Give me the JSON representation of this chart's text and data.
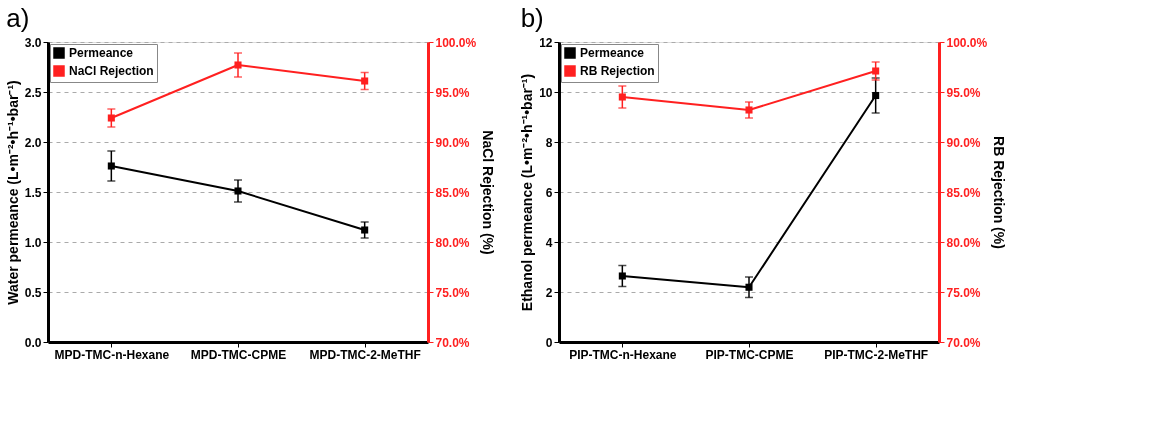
{
  "chart_data": [
    {
      "type": "line",
      "title": "a)",
      "categories": [
        "MPD-TMC-n-Hexane",
        "MPD-TMC-CPME",
        "MPD-TMC-2-MeTHF"
      ],
      "xlabel": null,
      "ylabel": "Water permeance (L•m⁻²•h⁻¹•bar⁻¹)",
      "y2label": "NaCl Rejection (%)",
      "series": [
        {
          "name": "Permeance",
          "color": "#000000",
          "values": [
            1.76,
            1.51,
            1.12
          ],
          "errors": [
            0.15,
            0.11,
            0.08
          ]
        },
        {
          "name": "NaCl Rejection",
          "color": "#ff2020",
          "axis": "y2",
          "values": [
            92.4,
            97.7,
            96.1
          ],
          "errors": [
            0.9,
            1.2,
            0.85
          ]
        }
      ],
      "ylim": [
        0,
        3
      ],
      "yticks": [
        {
          "value": 0,
          "label": "0.0"
        },
        {
          "value": 0.5,
          "label": "0.5"
        },
        {
          "value": 1,
          "label": "1.0"
        },
        {
          "value": 1.5,
          "label": "1.5"
        },
        {
          "value": 2,
          "label": "2.0"
        },
        {
          "value": 2.5,
          "label": "2.5"
        },
        {
          "value": 3,
          "label": "3.0"
        }
      ],
      "y2lim": [
        70,
        100
      ],
      "y2ticks": [
        {
          "value": 70,
          "label": "70.0%"
        },
        {
          "value": 75,
          "label": "75.0%"
        },
        {
          "value": 80,
          "label": "80.0%"
        },
        {
          "value": 85,
          "label": "85.0%"
        },
        {
          "value": 90,
          "label": "90.0%"
        },
        {
          "value": 95,
          "label": "95.0%"
        },
        {
          "value": 100,
          "label": "100.0%"
        }
      ],
      "grid": "y",
      "legend": "top left",
      "marker": "square",
      "line_style": "solid"
    },
    {
      "type": "line",
      "title": "b)",
      "categories": [
        "PIP-TMC-n-Hexane",
        "PIP-TMC-CPME",
        "PIP-TMC-2-MeTHF"
      ],
      "ylabel": "Ethanol permeance (L•m⁻²•h⁻¹•bar⁻¹)",
      "y2label": "RB Rejection (%)",
      "series": [
        {
          "name": "Permeance",
          "color": "#000000",
          "values": [
            2.64,
            2.19,
            9.86
          ],
          "errors": [
            0.42,
            0.41,
            0.7
          ]
        },
        {
          "name": "RB Rejection",
          "color": "#ff2020",
          "axis": "y2",
          "values": [
            94.5,
            93.2,
            97.1
          ],
          "errors": [
            1.1,
            0.8,
            0.9
          ]
        }
      ],
      "ylim": [
        0,
        12
      ],
      "yticks": [
        0,
        2,
        4,
        6,
        8,
        10,
        12
      ],
      "y2lim": [
        70,
        100
      ],
      "y2ticks": [
        {
          "value": 70,
          "label": "70.0%"
        },
        {
          "value": 75,
          "label": "75.0%"
        },
        {
          "value": 80,
          "label": "80.0%"
        },
        {
          "value": 85,
          "label": "85.0%"
        },
        {
          "value": 90,
          "label": "90.0%"
        },
        {
          "value": 95,
          "label": "95.0%"
        },
        {
          "value": 100,
          "label": "100.0%"
        }
      ],
      "grid": "y",
      "legend": "top left",
      "marker": "square",
      "line_style": "solid"
    }
  ]
}
